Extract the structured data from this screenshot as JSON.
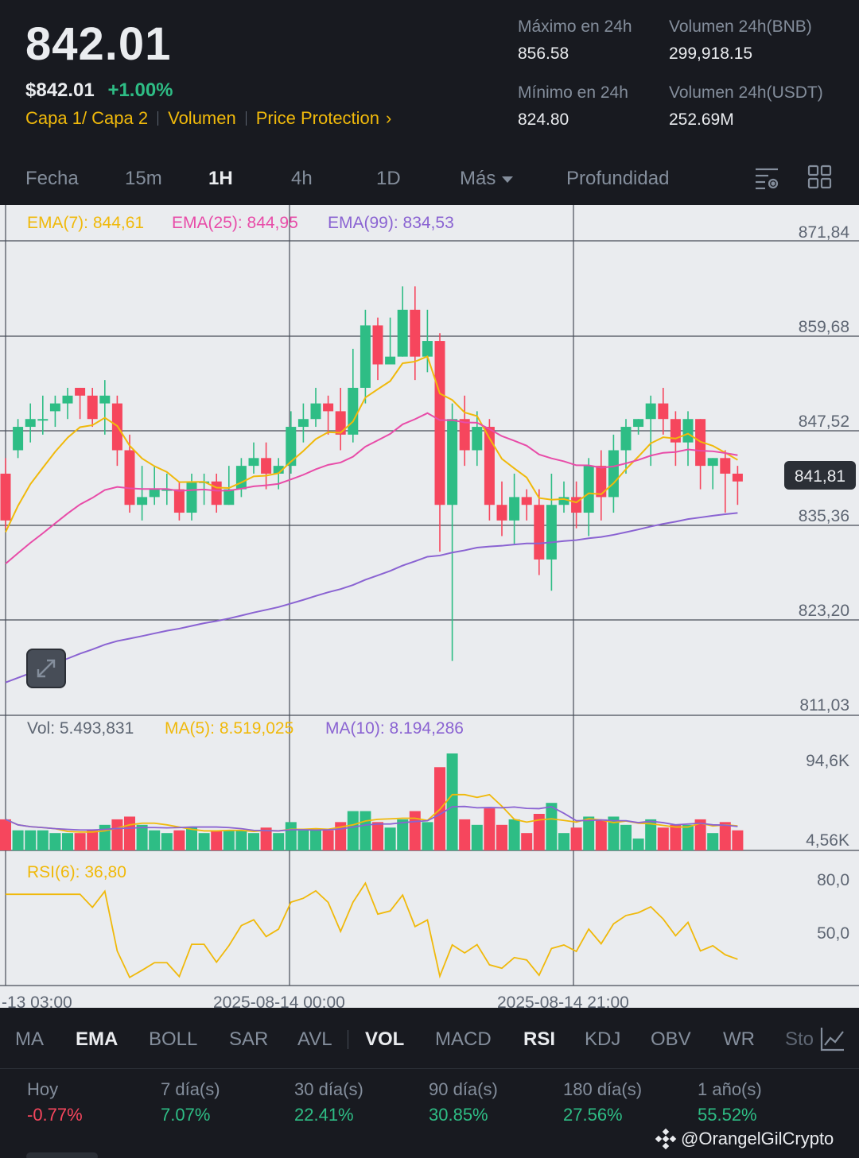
{
  "header": {
    "last_price": "842.01",
    "fiat_price": "$842.01",
    "change_pct": "+1.00%",
    "tags": [
      "Capa 1/ Capa 2",
      "Volumen",
      "Price Protection"
    ],
    "high_label": "Máximo en 24h",
    "high_value": "856.58",
    "low_label": "Mínimo en 24h",
    "low_value": "824.80",
    "vol_base_label": "Volumen 24h(BNB)",
    "vol_base_value": "299,918.15",
    "vol_quote_label": "Volumen 24h(USDT)",
    "vol_quote_value": "252.69M"
  },
  "tabs": {
    "items": [
      "Fecha",
      "15m",
      "1H",
      "4h",
      "1D",
      "Más",
      "Profundidad"
    ],
    "active": "1H"
  },
  "chart_data": {
    "type": "candlestick",
    "legend_main": {
      "ema7": "EMA(7): 844,61",
      "ema25": "EMA(25): 844,95",
      "ema99": "EMA(99): 834,53"
    },
    "price_axis": [
      "871,84",
      "859,68",
      "847,52",
      "835,36",
      "823,20",
      "811,03"
    ],
    "current_price_label": "841,81",
    "legend_volume": {
      "vol": "Vol: 5.493,831",
      "ma5": "MA(5): 8.519,025",
      "ma10": "MA(10): 8.194,286"
    },
    "volume_axis": [
      "94,6K",
      "4,56K"
    ],
    "legend_rsi": "RSI(6): 36,80",
    "rsi_axis": [
      "80,0",
      "50,0"
    ],
    "time_axis": [
      "-13 03:00",
      "2025-08-14 00:00",
      "2025-08-14 21:00"
    ],
    "ylim": [
      811.03,
      871.84
    ],
    "candles": [
      [
        842,
        836,
        844,
        835
      ],
      [
        845,
        848,
        849,
        844
      ],
      [
        848,
        849,
        851,
        846
      ],
      [
        849,
        849,
        852,
        847
      ],
      [
        850,
        851,
        852,
        848
      ],
      [
        851,
        852,
        853,
        849
      ],
      [
        853,
        852,
        853,
        849
      ],
      [
        852,
        849,
        853,
        848
      ],
      [
        851,
        852,
        854,
        847
      ],
      [
        851,
        845,
        852,
        843
      ],
      [
        845,
        838,
        847,
        837
      ],
      [
        838,
        839,
        843,
        836
      ],
      [
        839,
        840,
        843,
        838
      ],
      [
        840,
        840,
        842,
        838
      ],
      [
        840,
        837,
        841,
        836
      ],
      [
        837,
        841,
        842,
        836
      ],
      [
        841,
        841,
        842,
        838
      ],
      [
        841,
        838,
        842,
        837
      ],
      [
        838,
        840,
        843,
        838
      ],
      [
        840,
        843,
        844,
        839
      ],
      [
        843,
        844,
        846,
        842
      ],
      [
        844,
        842,
        846,
        840
      ],
      [
        842,
        843,
        844,
        840
      ],
      [
        843,
        848,
        850,
        842
      ],
      [
        848,
        849,
        851,
        846
      ],
      [
        849,
        851,
        853,
        848
      ],
      [
        851,
        850,
        852,
        847
      ],
      [
        850,
        847,
        853,
        845
      ],
      [
        847,
        853,
        858,
        846
      ],
      [
        853,
        861,
        863,
        851
      ],
      [
        861,
        856,
        862,
        854
      ],
      [
        856,
        857,
        862,
        856
      ],
      [
        857,
        863,
        866,
        857
      ],
      [
        863,
        857,
        866,
        854
      ],
      [
        857,
        859,
        863,
        855
      ],
      [
        859,
        838,
        860,
        832
      ],
      [
        838,
        849,
        851,
        818
      ],
      [
        849,
        845,
        852,
        843
      ],
      [
        845,
        848,
        850,
        843
      ],
      [
        848,
        838,
        849,
        836
      ],
      [
        838,
        836,
        841,
        834
      ],
      [
        836,
        839,
        842,
        833
      ],
      [
        839,
        838,
        840,
        836
      ],
      [
        838,
        831,
        840,
        829
      ],
      [
        831,
        838,
        842,
        827
      ],
      [
        838,
        839,
        841,
        837
      ],
      [
        839,
        837,
        841,
        835
      ],
      [
        837,
        843,
        844,
        834
      ],
      [
        843,
        839,
        845,
        836
      ],
      [
        839,
        845,
        847,
        837
      ],
      [
        845,
        848,
        849,
        842
      ],
      [
        848,
        849,
        849,
        847
      ],
      [
        849,
        851,
        852,
        843
      ],
      [
        851,
        849,
        853,
        847
      ],
      [
        849,
        846,
        850,
        843
      ],
      [
        846,
        849,
        850,
        843
      ],
      [
        849,
        843,
        849,
        840
      ],
      [
        843,
        844,
        844,
        840
      ],
      [
        844,
        842,
        845,
        837
      ],
      [
        842,
        841,
        843,
        838
      ]
    ]
  },
  "indicators": {
    "items": [
      "MA",
      "EMA",
      "BOLL",
      "SAR",
      "AVL",
      "VOL",
      "MACD",
      "RSI",
      "KDJ",
      "OBV",
      "WR",
      "Sto"
    ],
    "active": [
      "EMA",
      "VOL",
      "RSI"
    ]
  },
  "performance": [
    {
      "label": "Hoy",
      "value": "-0.77%",
      "color": "#f6465d"
    },
    {
      "label": "7 día(s)",
      "value": "7.07%",
      "color": "#2ebd85"
    },
    {
      "label": "30 día(s)",
      "value": "22.41%",
      "color": "#2ebd85"
    },
    {
      "label": "90 día(s)",
      "value": "30.85%",
      "color": "#2ebd85"
    },
    {
      "label": "180 día(s)",
      "value": "27.56%",
      "color": "#2ebd85"
    },
    {
      "label": "1 año(s)",
      "value": "55.52%",
      "color": "#2ebd85"
    }
  ],
  "watermark": "@OrangelGilCrypto",
  "colors": {
    "up": "#2ebd85",
    "down": "#f6465d",
    "ema7": "#f0b90b",
    "ema25": "#e84ca8",
    "ema99": "#8a63d2",
    "accent": "#f0b90b"
  }
}
